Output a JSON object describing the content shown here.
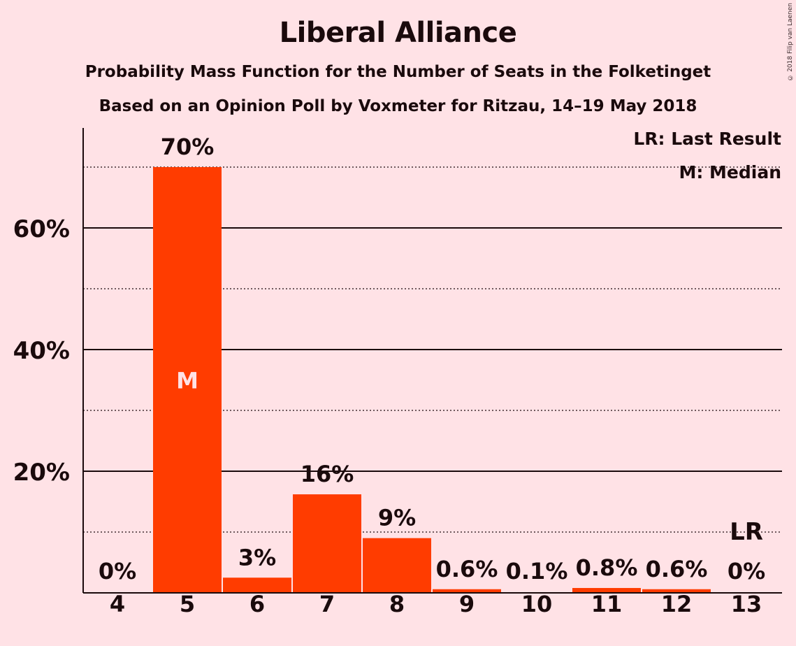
{
  "chart_data": {
    "type": "bar",
    "title": "Liberal Alliance",
    "subtitle": "Probability Mass Function for the Number of Seats in the Folketinget",
    "subtitle2": "Based on an Opinion Poll by Voxmeter for Ritzau, 14–19 May 2018",
    "copyright": "© 2018 Filip van Laenen",
    "legend": [
      "LR: Last Result",
      "M: Median"
    ],
    "legend_placement": "top-right",
    "categories": [
      "4",
      "5",
      "6",
      "7",
      "8",
      "9",
      "10",
      "11",
      "12",
      "13"
    ],
    "values": [
      0,
      70,
      2.5,
      16.2,
      9,
      0.6,
      0.1,
      0.8,
      0.6,
      0
    ],
    "value_labels": [
      "0%",
      "70%",
      "3%",
      "16%",
      "9%",
      "0.6%",
      "0.1%",
      "0.8%",
      "0.6%",
      "0%"
    ],
    "median_index": 1,
    "median_label": "M",
    "last_result_index": 9,
    "last_result_label": "LR",
    "ylim": [
      0,
      76
    ],
    "yticks": [
      20,
      40,
      60
    ],
    "ytick_labels": [
      "20%",
      "40%",
      "60%"
    ],
    "minor_gridlines": [
      10,
      30,
      50,
      70
    ],
    "bar_color": "#FF3C00",
    "text_color": "#1A0A0C",
    "background": "#FFE2E6"
  }
}
